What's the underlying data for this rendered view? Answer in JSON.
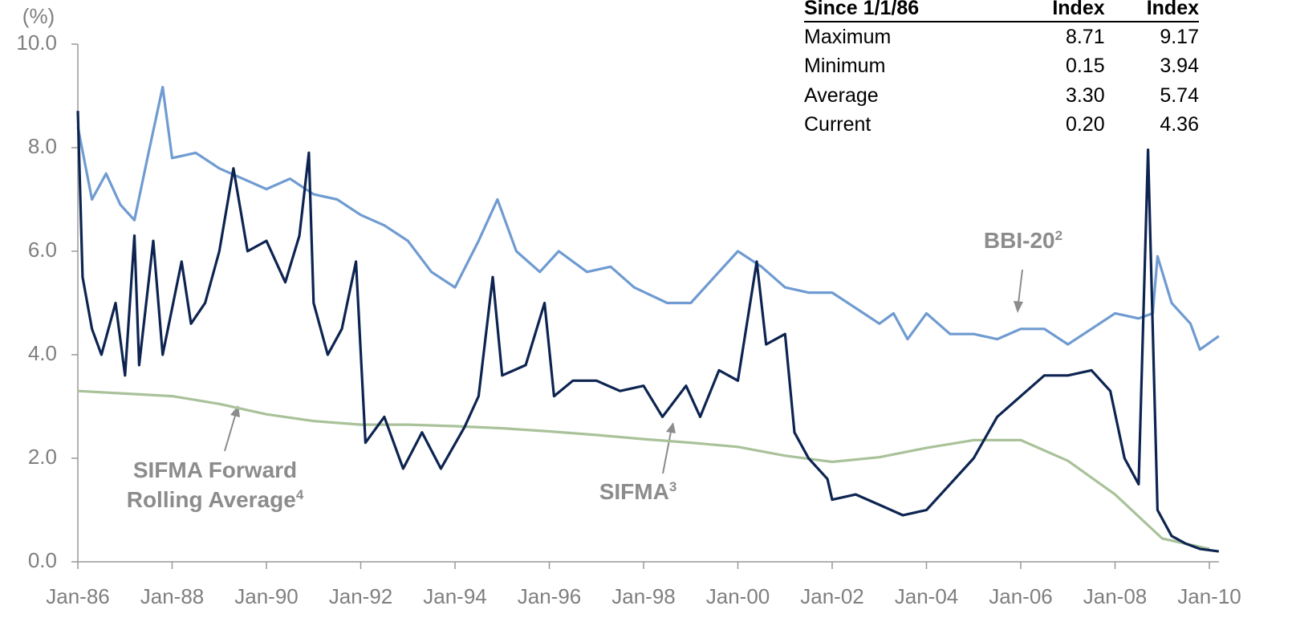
{
  "chart_data": {
    "type": "line",
    "y_unit": "(%)",
    "xlim": [
      1986,
      2010.2
    ],
    "ylim": [
      0,
      10
    ],
    "xticks": [
      {
        "value": 1986,
        "label": "Jan-86"
      },
      {
        "value": 1988,
        "label": "Jan-88"
      },
      {
        "value": 1990,
        "label": "Jan-90"
      },
      {
        "value": 1992,
        "label": "Jan-92"
      },
      {
        "value": 1994,
        "label": "Jan-94"
      },
      {
        "value": 1996,
        "label": "Jan-96"
      },
      {
        "value": 1998,
        "label": "Jan-98"
      },
      {
        "value": 2000,
        "label": "Jan-00"
      },
      {
        "value": 2002,
        "label": "Jan-02"
      },
      {
        "value": 2004,
        "label": "Jan-04"
      },
      {
        "value": 2006,
        "label": "Jan-06"
      },
      {
        "value": 2008,
        "label": "Jan-08"
      },
      {
        "value": 2010,
        "label": "Jan-10"
      }
    ],
    "yticks": [
      {
        "value": 0,
        "label": "0.0"
      },
      {
        "value": 2,
        "label": "2.0"
      },
      {
        "value": 4,
        "label": "4.0"
      },
      {
        "value": 6,
        "label": "6.0"
      },
      {
        "value": 8,
        "label": "8.0"
      },
      {
        "value": 10,
        "label": "10.0"
      }
    ],
    "series": [
      {
        "name": "BBI-20",
        "note": "2",
        "color": "#6f9bd1",
        "x": [
          1986.0,
          1986.3,
          1986.6,
          1986.9,
          1987.2,
          1987.5,
          1987.8,
          1988.0,
          1988.5,
          1989.0,
          1989.5,
          1990.0,
          1990.5,
          1991.0,
          1991.5,
          1992.0,
          1992.5,
          1993.0,
          1993.5,
          1994.0,
          1994.5,
          1994.9,
          1995.3,
          1995.8,
          1996.2,
          1996.8,
          1997.3,
          1997.8,
          1998.5,
          1999.0,
          1999.5,
          2000.0,
          2000.5,
          2001.0,
          2001.5,
          2002.0,
          2002.5,
          2003.0,
          2003.3,
          2003.6,
          2004.0,
          2004.5,
          2005.0,
          2005.5,
          2006.0,
          2006.5,
          2007.0,
          2007.5,
          2008.0,
          2008.5,
          2008.8,
          2008.9,
          2009.2,
          2009.6,
          2009.8,
          2010.2
        ],
        "values": [
          8.4,
          7.0,
          7.5,
          6.9,
          6.6,
          7.9,
          9.17,
          7.8,
          7.9,
          7.6,
          7.4,
          7.2,
          7.4,
          7.1,
          7.0,
          6.7,
          6.5,
          6.2,
          5.6,
          5.3,
          6.2,
          7.0,
          6.0,
          5.6,
          6.0,
          5.6,
          5.7,
          5.3,
          5.0,
          5.0,
          5.5,
          6.0,
          5.7,
          5.3,
          5.2,
          5.2,
          4.9,
          4.6,
          4.8,
          4.3,
          4.8,
          4.4,
          4.4,
          4.3,
          4.5,
          4.5,
          4.2,
          4.5,
          4.8,
          4.7,
          4.8,
          5.9,
          5.0,
          4.6,
          4.1,
          4.36
        ]
      },
      {
        "name": "SIFMA",
        "note": "3",
        "color": "#0d2451",
        "x": [
          1986.0,
          1986.1,
          1986.3,
          1986.5,
          1986.8,
          1987.0,
          1987.2,
          1987.3,
          1987.6,
          1987.8,
          1988.2,
          1988.4,
          1988.7,
          1989.0,
          1989.3,
          1989.6,
          1990.0,
          1990.4,
          1990.7,
          1990.9,
          1991.0,
          1991.3,
          1991.6,
          1991.9,
          1992.1,
          1992.5,
          1992.9,
          1993.3,
          1993.7,
          1994.2,
          1994.5,
          1994.8,
          1995.0,
          1995.5,
          1995.9,
          1996.1,
          1996.5,
          1997.0,
          1997.5,
          1998.0,
          1998.4,
          1998.9,
          1999.2,
          1999.6,
          2000.0,
          2000.4,
          2000.6,
          2001.0,
          2001.2,
          2001.5,
          2001.9,
          2002.0,
          2002.5,
          2003.0,
          2003.5,
          2004.0,
          2004.5,
          2005.0,
          2005.5,
          2006.0,
          2006.5,
          2007.0,
          2007.5,
          2007.9,
          2008.2,
          2008.5,
          2008.7,
          2008.9,
          2009.2,
          2009.5,
          2009.8,
          2010.2
        ],
        "values": [
          8.71,
          5.5,
          4.5,
          4.0,
          5.0,
          3.6,
          6.3,
          3.8,
          6.2,
          4.0,
          5.8,
          4.6,
          5.0,
          6.0,
          7.6,
          6.0,
          6.2,
          5.4,
          6.3,
          7.9,
          5.0,
          4.0,
          4.5,
          5.8,
          2.3,
          2.8,
          1.8,
          2.5,
          1.8,
          2.6,
          3.2,
          5.5,
          3.6,
          3.8,
          5.0,
          3.2,
          3.5,
          3.5,
          3.3,
          3.4,
          2.8,
          3.4,
          2.8,
          3.7,
          3.5,
          5.8,
          4.2,
          4.4,
          2.5,
          2.0,
          1.6,
          1.2,
          1.3,
          1.1,
          0.9,
          1.0,
          1.5,
          2.0,
          2.8,
          3.2,
          3.6,
          3.6,
          3.7,
          3.3,
          2.0,
          1.5,
          7.96,
          1.0,
          0.5,
          0.35,
          0.25,
          0.2
        ]
      },
      {
        "name": "SIFMA Forward Rolling Average",
        "note": "4",
        "color": "#a9c29a",
        "x": [
          1986,
          1987,
          1988,
          1989,
          1990,
          1991,
          1992,
          1993,
          1994,
          1995,
          1996,
          1997,
          1998,
          1999,
          2000,
          2001,
          2002,
          2003,
          2004,
          2005,
          2006,
          2007,
          2008,
          2009,
          2010
        ],
        "values": [
          3.3,
          3.25,
          3.2,
          3.05,
          2.85,
          2.72,
          2.65,
          2.65,
          2.62,
          2.58,
          2.52,
          2.45,
          2.37,
          2.3,
          2.22,
          2.05,
          1.93,
          2.02,
          2.2,
          2.35,
          2.35,
          1.95,
          1.3,
          0.45,
          0.25
        ]
      }
    ]
  },
  "table": {
    "header": [
      "Since 1/1/86",
      "Index",
      "Index"
    ],
    "rows": [
      [
        "Maximum",
        "8.71",
        "9.17"
      ],
      [
        "Minimum",
        "0.15",
        "3.94"
      ],
      [
        "Average",
        "3.30",
        "5.74"
      ],
      [
        "Current",
        "0.20",
        "4.36"
      ]
    ]
  }
}
